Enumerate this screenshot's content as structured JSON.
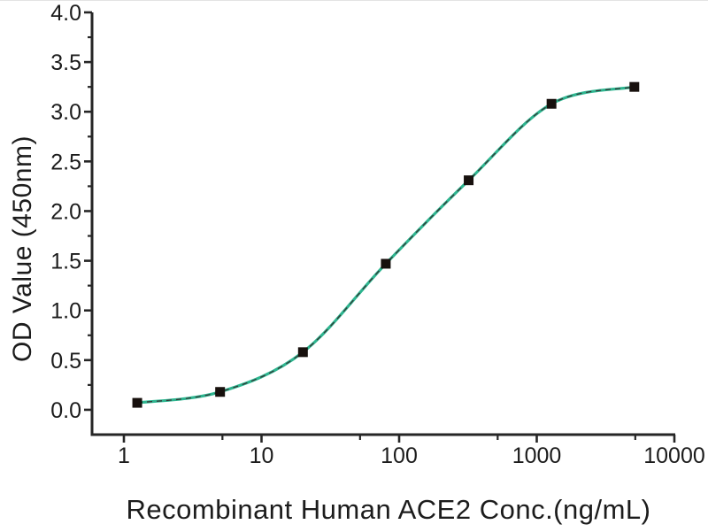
{
  "chart_data": {
    "type": "scatter",
    "title": "",
    "xlabel": "Recombinant Human ACE2 Conc.(ng/mL)",
    "ylabel": "OD Value (450nm)",
    "x_scale": "log",
    "x": [
      1.25,
      5,
      20,
      80,
      320,
      1280,
      5120
    ],
    "y": [
      0.07,
      0.18,
      0.58,
      1.47,
      2.31,
      3.08,
      3.25
    ],
    "fit": "sigmoidal 4PL fit curve through points",
    "x_ticks": [
      1,
      10,
      100,
      1000,
      10000
    ],
    "x_tick_labels": [
      "1",
      "10",
      "100",
      "1000",
      "10000"
    ],
    "x_minor_ticks": [
      5.2,
      52,
      520,
      5200
    ],
    "y_ticks": [
      0,
      0.5,
      1,
      1.5,
      2,
      2.5,
      3,
      3.5,
      4
    ],
    "y_tick_labels": [
      "0.0",
      "0.5",
      "1.0",
      "1.5",
      "2.0",
      "2.5",
      "3.0",
      "3.5",
      "4.0"
    ],
    "y_minor_ticks": [
      0.25,
      0.75,
      1.25,
      1.75,
      2.25,
      2.75,
      3.25,
      3.75
    ],
    "xlim": [
      0.59,
      10000
    ],
    "ylim": [
      -0.25,
      4.0
    ],
    "grid": false,
    "legend": false,
    "marker": "square",
    "colors": {
      "curve": "#2db58f",
      "curve_dash_overlay": "#343434",
      "marker": "#17100d",
      "axis": "#262626",
      "text": "#1c1c1c"
    }
  }
}
